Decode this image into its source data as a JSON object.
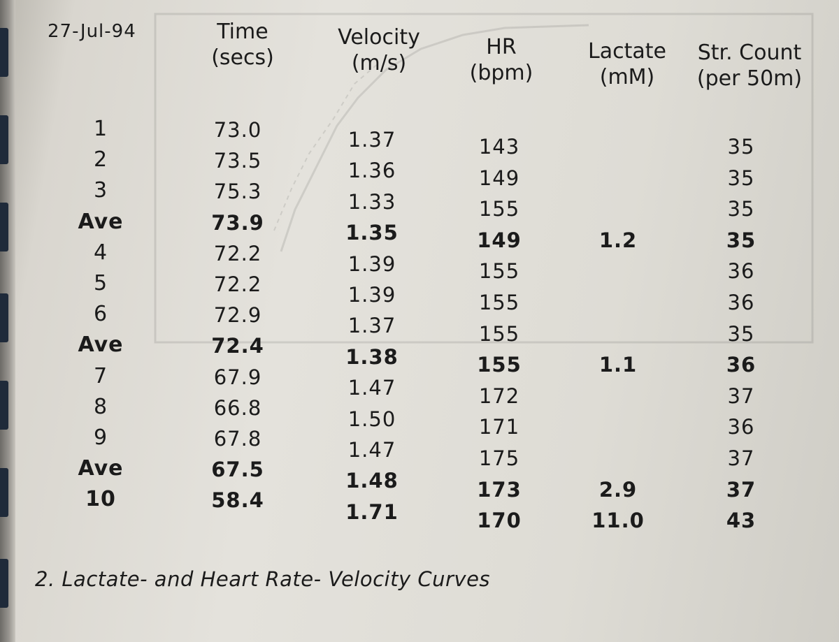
{
  "header": {
    "date": "27-Jul-94",
    "columns": [
      {
        "line1": "Time",
        "line2": "(secs)"
      },
      {
        "line1": "Velocity",
        "line2": "(m/s)"
      },
      {
        "line1": "HR",
        "line2": "(bpm)"
      },
      {
        "line1": "Lactate",
        "line2": "(mM)"
      },
      {
        "line1": "Str. Count",
        "line2": "(per 50m)"
      }
    ]
  },
  "rows": [
    {
      "label": "1",
      "time": "73.0",
      "velocity": "1.37",
      "hr": "143",
      "lactate": "",
      "stroke": "35",
      "bold": false
    },
    {
      "label": "2",
      "time": "73.5",
      "velocity": "1.36",
      "hr": "149",
      "lactate": "",
      "stroke": "35",
      "bold": false
    },
    {
      "label": "3",
      "time": "75.3",
      "velocity": "1.33",
      "hr": "155",
      "lactate": "",
      "stroke": "35",
      "bold": false
    },
    {
      "label": "Ave",
      "time": "73.9",
      "velocity": "1.35",
      "hr": "149",
      "lactate": "1.2",
      "stroke": "35",
      "bold": true
    },
    {
      "label": "4",
      "time": "72.2",
      "velocity": "1.39",
      "hr": "155",
      "lactate": "",
      "stroke": "36",
      "bold": false
    },
    {
      "label": "5",
      "time": "72.2",
      "velocity": "1.39",
      "hr": "155",
      "lactate": "",
      "stroke": "36",
      "bold": false
    },
    {
      "label": "6",
      "time": "72.9",
      "velocity": "1.37",
      "hr": "155",
      "lactate": "",
      "stroke": "35",
      "bold": false
    },
    {
      "label": "Ave",
      "time": "72.4",
      "velocity": "1.38",
      "hr": "155",
      "lactate": "1.1",
      "stroke": "36",
      "bold": true
    },
    {
      "label": "7",
      "time": "67.9",
      "velocity": "1.47",
      "hr": "172",
      "lactate": "",
      "stroke": "37",
      "bold": false
    },
    {
      "label": "8",
      "time": "66.8",
      "velocity": "1.50",
      "hr": "171",
      "lactate": "",
      "stroke": "36",
      "bold": false
    },
    {
      "label": "9",
      "time": "67.8",
      "velocity": "1.47",
      "hr": "175",
      "lactate": "",
      "stroke": "37",
      "bold": false
    },
    {
      "label": "Ave",
      "time": "67.5",
      "velocity": "1.48",
      "hr": "173",
      "lactate": "2.9",
      "stroke": "37",
      "bold": true
    },
    {
      "label": "10",
      "time": "58.4",
      "velocity": "1.71",
      "hr": "170",
      "lactate": "11.0",
      "stroke": "43",
      "bold": true
    }
  ],
  "caption": "2. Lactate- and Heart Rate- Velocity Curves"
}
